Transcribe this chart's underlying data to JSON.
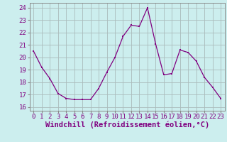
{
  "x": [
    0,
    1,
    2,
    3,
    4,
    5,
    6,
    7,
    8,
    9,
    10,
    11,
    12,
    13,
    14,
    15,
    16,
    17,
    18,
    19,
    20,
    21,
    22,
    23
  ],
  "y": [
    20.5,
    19.2,
    18.3,
    17.1,
    16.7,
    16.6,
    16.6,
    16.6,
    17.5,
    18.8,
    20.0,
    21.7,
    22.6,
    22.5,
    24.0,
    21.1,
    18.6,
    18.7,
    20.6,
    20.4,
    19.7,
    18.4,
    17.6,
    16.7
  ],
  "line_color": "#800080",
  "marker": "s",
  "marker_size": 2,
  "bg_color": "#cceeee",
  "grid_color": "#aabbbb",
  "xlabel": "Windchill (Refroidissement éolien,°C)",
  "ylim": [
    15.7,
    24.4
  ],
  "yticks": [
    16,
    17,
    18,
    19,
    20,
    21,
    22,
    23,
    24
  ],
  "xlim": [
    -0.5,
    23.5
  ],
  "xticks": [
    0,
    1,
    2,
    3,
    4,
    5,
    6,
    7,
    8,
    9,
    10,
    11,
    12,
    13,
    14,
    15,
    16,
    17,
    18,
    19,
    20,
    21,
    22,
    23
  ],
  "tick_fontsize": 6.5,
  "xlabel_fontsize": 7.5,
  "spine_color": "#888888"
}
